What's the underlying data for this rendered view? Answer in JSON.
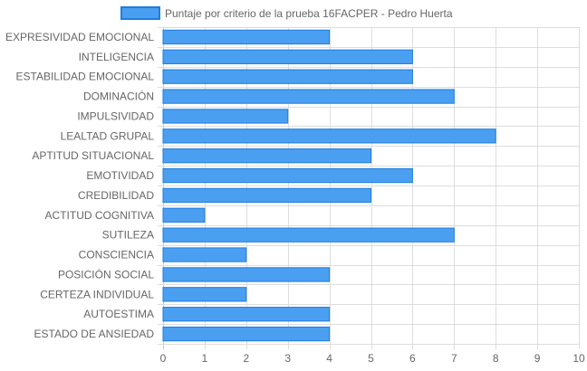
{
  "chart_data": {
    "type": "bar",
    "orientation": "horizontal",
    "categories": [
      "EXPRESIVIDAD EMOCIONAL",
      "INTELIGENCIA",
      "ESTABILIDAD EMOCIONAL",
      "DOMINACIÓN",
      "IMPULSIVIDAD",
      "LEALTAD GRUPAL",
      "APTITUD SITUACIONAL",
      "EMOTIVIDAD",
      "CREDIBILIDAD",
      "ACTITUD COGNITIVA",
      "SUTILEZA",
      "CONSCIENCIA",
      "POSICIÓN SOCIAL",
      "CERTEZA INDIVIDUAL",
      "AUTOESTIMA",
      "ESTADO DE ANSIEDAD"
    ],
    "series": [
      {
        "name": "Puntaje por criterio de la prueba 16FACPER - Pedro Huerta",
        "values": [
          4,
          6,
          6,
          7,
          3,
          8,
          5,
          6,
          5,
          1,
          7,
          2,
          4,
          2,
          4,
          4
        ],
        "color": "#4a9ff0",
        "border_color": "#1f7de0"
      }
    ],
    "xlim": [
      0,
      10
    ],
    "x_ticks": [
      "0",
      "1",
      "2",
      "3",
      "4",
      "5",
      "6",
      "7",
      "8",
      "9",
      "10"
    ],
    "grid": true,
    "grid_color": "#dddddd",
    "legend_position": "top"
  }
}
